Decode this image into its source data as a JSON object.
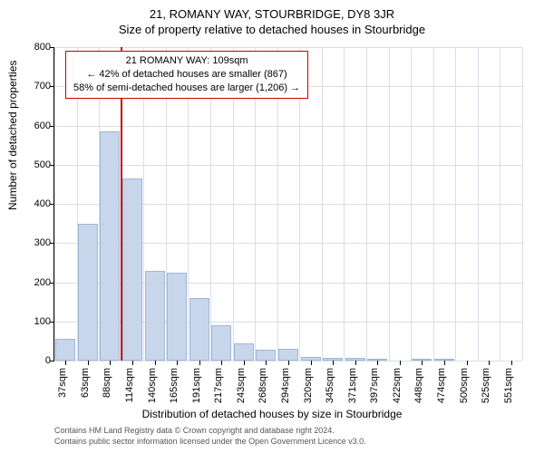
{
  "titles": {
    "line1": "21, ROMANY WAY, STOURBRIDGE, DY8 3JR",
    "line2": "Size of property relative to detached houses in Stourbridge"
  },
  "infobox": {
    "line1": "21 ROMANY WAY: 109sqm",
    "line2": "← 42% of detached houses are smaller (867)",
    "line3": "58% of semi-detached houses are larger (1,206) →"
  },
  "chart": {
    "type": "bar",
    "ylabel": "Number of detached properties",
    "xlabel": "Distribution of detached houses by size in Stourbridge",
    "ylim": [
      0,
      800
    ],
    "ytick_step": 100,
    "bar_fill": "#c8d6ec",
    "bar_stroke": "#9fb6d8",
    "grid_color": "#d9dfe7",
    "background": "#ffffff",
    "marker_color": "#cc0000",
    "marker_x_index": 3,
    "categories": [
      "37sqm",
      "63sqm",
      "88sqm",
      "114sqm",
      "140sqm",
      "165sqm",
      "191sqm",
      "217sqm",
      "243sqm",
      "268sqm",
      "294sqm",
      "320sqm",
      "345sqm",
      "371sqm",
      "397sqm",
      "422sqm",
      "448sqm",
      "474sqm",
      "500sqm",
      "525sqm",
      "551sqm"
    ],
    "values": [
      55,
      350,
      585,
      465,
      230,
      225,
      160,
      90,
      45,
      28,
      30,
      10,
      8,
      8,
      5,
      0,
      5,
      5,
      0,
      0,
      0
    ],
    "title_fontsize": 13,
    "label_fontsize": 12,
    "tick_fontsize": 11
  },
  "footer": {
    "line1": "Contains HM Land Registry data © Crown copyright and database right 2024.",
    "line2": "Contains public sector information licensed under the Open Government Licence v3.0."
  }
}
